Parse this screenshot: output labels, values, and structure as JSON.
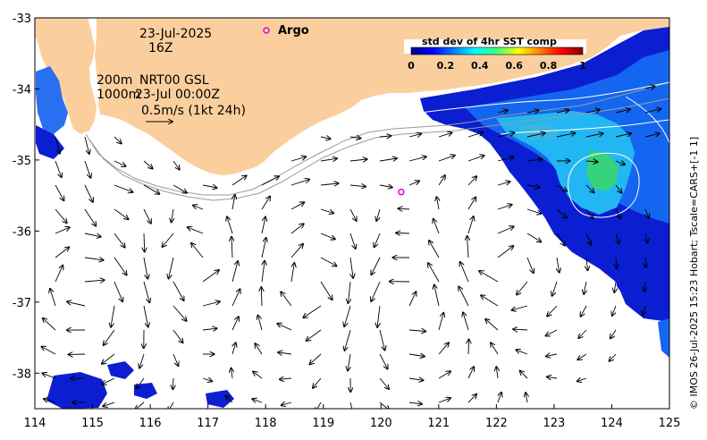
{
  "map": {
    "lon_range": [
      114,
      125
    ],
    "lat_range": [
      -38.5,
      -33
    ],
    "x_ticks": [
      "114",
      "115",
      "116",
      "117",
      "118",
      "119",
      "120",
      "121",
      "122",
      "123",
      "124",
      "125"
    ],
    "y_ticks": [
      "-33",
      "-34",
      "-35",
      "-36",
      "-37",
      "-38"
    ],
    "colors": {
      "land": "#fbcf9d",
      "ocean": "#ffffff",
      "arrow": "#000000",
      "isobath": "#9a9a9a",
      "sst_contour": "#ffffff",
      "argo_marker": "#e000e0"
    }
  },
  "annotations": {
    "date": "23-Jul-2025",
    "hour": "16Z",
    "isobaths": "200m",
    "isobaths2": "1000m",
    "product": "NRT00 GSL",
    "timestamp": "23-Jul 00:00Z",
    "scale_arrow": "0.5m/s (1kt 24h)"
  },
  "argo": {
    "legend_label": "Argo",
    "float_location": [
      120.35,
      -35.45
    ]
  },
  "colorbar": {
    "title": "std dev of 4hr SST comp",
    "ticks": [
      "0",
      "0.2",
      "0.4",
      "0.6",
      "0.8",
      "1"
    ],
    "colormap": "jet"
  },
  "credit": "© IMOS 26-Jul-2025 15:23 Hobart; Tscale=CARS+[-1 1]"
}
